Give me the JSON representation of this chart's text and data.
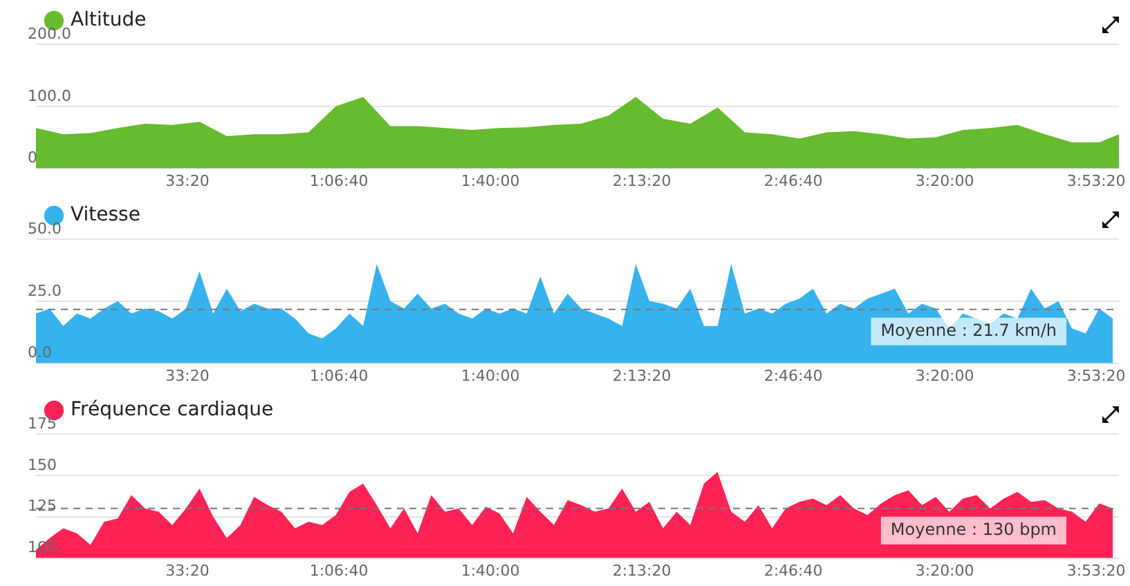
{
  "chart_data": [
    {
      "type": "area",
      "legend": "top left",
      "grid": "y",
      "xlim": [
        0,
        14300
      ],
      "xticks": [
        {
          "value": 2000,
          "label": "33:20"
        },
        {
          "value": 4000,
          "label": "1:06:40"
        },
        {
          "value": 6000,
          "label": "1:40:00"
        },
        {
          "value": 8000,
          "label": "2:13:20"
        },
        {
          "value": 10000,
          "label": "2:46:40"
        },
        {
          "value": 12000,
          "label": "3:20:00"
        },
        {
          "value": 14000,
          "label": "3:53:20"
        }
      ],
      "ylim": [
        0,
        200
      ],
      "yticks": [
        0,
        {
          "value": 100,
          "label": "100.0"
        },
        {
          "value": 200,
          "label": "200.0"
        }
      ],
      "series": [
        {
          "name": "Altitude",
          "color": "#66bb2e",
          "x": [
            0,
            360,
            720,
            1080,
            1440,
            1800,
            2160,
            2520,
            2880,
            3240,
            3600,
            3960,
            4320,
            4680,
            5040,
            5400,
            5760,
            6120,
            6480,
            6840,
            7200,
            7560,
            7920,
            8280,
            8640,
            9000,
            9360,
            9720,
            10080,
            10440,
            10800,
            11160,
            11520,
            11880,
            12240,
            12600,
            12960,
            13320,
            13680,
            14040,
            14300
          ],
          "values": [
            65,
            55,
            57,
            65,
            72,
            70,
            75,
            52,
            55,
            55,
            58,
            100,
            115,
            68,
            68,
            65,
            62,
            65,
            66,
            70,
            72,
            85,
            115,
            80,
            72,
            98,
            58,
            55,
            48,
            58,
            60,
            55,
            48,
            50,
            62,
            65,
            70,
            55,
            42,
            42,
            55
          ]
        }
      ]
    },
    {
      "type": "area",
      "legend": "top left",
      "grid": "y",
      "xlim": [
        0,
        14300
      ],
      "xticks": [
        {
          "value": 2000,
          "label": "33:20"
        },
        {
          "value": 4000,
          "label": "1:06:40"
        },
        {
          "value": 6000,
          "label": "1:40:00"
        },
        {
          "value": 8000,
          "label": "2:13:20"
        },
        {
          "value": 10000,
          "label": "2:46:40"
        },
        {
          "value": 12000,
          "label": "3:20:00"
        },
        {
          "value": 14000,
          "label": "3:53:20"
        }
      ],
      "ylim": [
        0,
        50
      ],
      "yticks": [
        {
          "value": 0,
          "label": "0.0"
        },
        {
          "value": 25,
          "label": "25.0"
        },
        {
          "value": 50,
          "label": "50.0"
        }
      ],
      "ref_lines": [
        {
          "axis": "y",
          "value": 21.7,
          "label": "Moyenne : 21.7 km/h",
          "color": "#777777",
          "line_style": "dashed"
        }
      ],
      "series": [
        {
          "name": "Vitesse",
          "color": "#36b3ee",
          "x": [
            0,
            180,
            360,
            540,
            720,
            900,
            1080,
            1260,
            1440,
            1620,
            1800,
            1980,
            2160,
            2340,
            2520,
            2700,
            2880,
            3060,
            3240,
            3420,
            3600,
            3780,
            3960,
            4140,
            4320,
            4500,
            4680,
            4860,
            5040,
            5220,
            5400,
            5580,
            5760,
            5940,
            6120,
            6300,
            6480,
            6660,
            6840,
            7020,
            7200,
            7380,
            7560,
            7740,
            7920,
            8100,
            8280,
            8460,
            8640,
            8820,
            9000,
            9180,
            9360,
            9540,
            9720,
            9900,
            10080,
            10260,
            10440,
            10620,
            10800,
            10980,
            11160,
            11340,
            11520,
            11700,
            11880,
            12060,
            12240,
            12420,
            12600,
            12780,
            12960,
            13140,
            13320,
            13500,
            13680,
            13860,
            14040,
            14220
          ],
          "values": [
            20,
            22,
            15,
            20,
            18,
            22,
            25,
            20,
            22,
            21,
            18,
            22,
            37,
            20,
            30,
            21,
            24,
            22,
            22,
            18,
            12,
            10,
            14,
            20,
            15,
            40,
            25,
            22,
            28,
            22,
            24,
            20,
            18,
            22,
            20,
            22,
            20,
            35,
            20,
            28,
            22,
            20,
            18,
            15,
            40,
            25,
            24,
            22,
            30,
            15,
            15,
            40,
            20,
            22,
            20,
            24,
            26,
            30,
            20,
            24,
            22,
            26,
            28,
            30,
            20,
            24,
            22,
            14,
            20,
            18,
            16,
            20,
            18,
            30,
            22,
            25,
            14,
            12,
            22,
            18
          ]
        }
      ]
    },
    {
      "type": "area",
      "legend": "top left",
      "grid": "y",
      "xlim": [
        0,
        14300
      ],
      "xticks": [
        {
          "value": 2000,
          "label": "33:20"
        },
        {
          "value": 4000,
          "label": "1:06:40"
        },
        {
          "value": 6000,
          "label": "1:40:00"
        },
        {
          "value": 8000,
          "label": "2:13:20"
        },
        {
          "value": 10000,
          "label": "2:46:40"
        },
        {
          "value": 12000,
          "label": "3:20:00"
        },
        {
          "value": 14000,
          "label": "3:53:20"
        }
      ],
      "ylim": [
        100,
        175
      ],
      "yticks": [
        100,
        125,
        150,
        175
      ],
      "ref_lines": [
        {
          "axis": "y",
          "value": 130,
          "label": "Moyenne : 130 bpm",
          "color": "#777777",
          "line_style": "dashed"
        }
      ],
      "series": [
        {
          "name": "Fréquence cardiaque",
          "color": "#ff2255",
          "x": [
            0,
            180,
            360,
            540,
            720,
            900,
            1080,
            1260,
            1440,
            1620,
            1800,
            1980,
            2160,
            2340,
            2520,
            2700,
            2880,
            3060,
            3240,
            3420,
            3600,
            3780,
            3960,
            4140,
            4320,
            4500,
            4680,
            4860,
            5040,
            5220,
            5400,
            5580,
            5760,
            5940,
            6120,
            6300,
            6480,
            6660,
            6840,
            7020,
            7200,
            7380,
            7560,
            7740,
            7920,
            8100,
            8280,
            8460,
            8640,
            8820,
            9000,
            9180,
            9360,
            9540,
            9720,
            9900,
            10080,
            10260,
            10440,
            10620,
            10800,
            10980,
            11160,
            11340,
            11520,
            11700,
            11880,
            12060,
            12240,
            12420,
            12600,
            12780,
            12960,
            13140,
            13320,
            13500,
            13680,
            13860,
            14040,
            14220
          ],
          "values": [
            105,
            112,
            118,
            115,
            108,
            122,
            124,
            138,
            130,
            128,
            120,
            130,
            142,
            125,
            112,
            120,
            137,
            132,
            128,
            118,
            122,
            120,
            126,
            140,
            145,
            132,
            118,
            130,
            115,
            138,
            128,
            130,
            120,
            131,
            127,
            115,
            137,
            128,
            120,
            135,
            132,
            128,
            130,
            142,
            128,
            134,
            118,
            128,
            120,
            145,
            152,
            128,
            122,
            132,
            118,
            130,
            134,
            136,
            132,
            138,
            130,
            126,
            133,
            138,
            141,
            132,
            137,
            128,
            136,
            138,
            130,
            136,
            140,
            134,
            135,
            130,
            128,
            122,
            133,
            130
          ]
        }
      ]
    }
  ]
}
